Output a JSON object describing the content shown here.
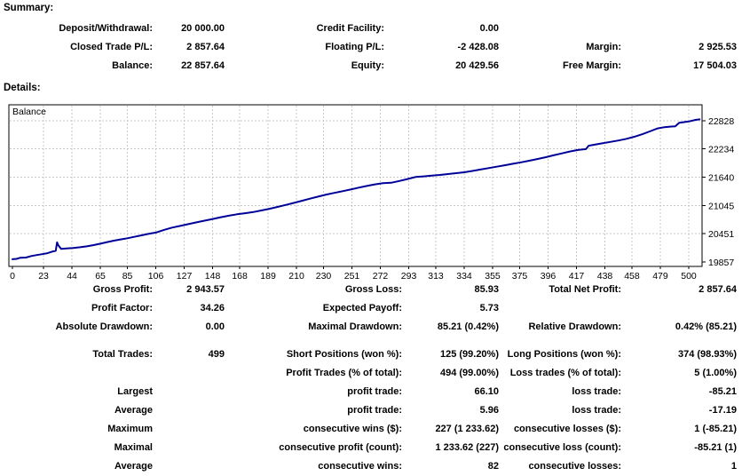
{
  "summary": {
    "heading": "Summary:",
    "rows": [
      [
        "Deposit/Withdrawal:",
        "20 000.00",
        "Credit Facility:",
        "0.00",
        "",
        ""
      ],
      [
        "Closed Trade P/L:",
        "2 857.64",
        "Floating P/L:",
        "-2 428.08",
        "Margin:",
        "2 925.53"
      ],
      [
        "Balance:",
        "22 857.64",
        "Equity:",
        "20 429.56",
        "Free Margin:",
        "17 504.03"
      ]
    ]
  },
  "details": {
    "heading": "Details:"
  },
  "chart_data": {
    "type": "line",
    "title": "Balance",
    "legend_position": "top-left-inside",
    "grid": "dashed",
    "line_color": "#000099",
    "grid_color": "#c8c8c8",
    "border_color": "#000000",
    "x_ticks": [
      0,
      23,
      44,
      65,
      85,
      106,
      127,
      148,
      168,
      189,
      210,
      230,
      251,
      272,
      293,
      313,
      334,
      355,
      375,
      396,
      417,
      438,
      458,
      479,
      500
    ],
    "y_ticks": [
      19857,
      20451,
      21045,
      21640,
      22234,
      22828
    ],
    "xlim": [
      0,
      510
    ],
    "ylim": [
      19764,
      23180
    ],
    "series": [
      {
        "name": "Balance",
        "points": [
          [
            0,
            19915
          ],
          [
            3,
            19922
          ],
          [
            6,
            19946
          ],
          [
            10,
            19950
          ],
          [
            14,
            19982
          ],
          [
            18,
            20002
          ],
          [
            22,
            20022
          ],
          [
            26,
            20042
          ],
          [
            30,
            20080
          ],
          [
            32,
            20092
          ],
          [
            33,
            20270
          ],
          [
            34,
            20205
          ],
          [
            36,
            20132
          ],
          [
            40,
            20142
          ],
          [
            45,
            20152
          ],
          [
            50,
            20168
          ],
          [
            55,
            20186
          ],
          [
            60,
            20212
          ],
          [
            65,
            20242
          ],
          [
            70,
            20276
          ],
          [
            75,
            20306
          ],
          [
            80,
            20332
          ],
          [
            85,
            20356
          ],
          [
            90,
            20386
          ],
          [
            95,
            20416
          ],
          [
            100,
            20446
          ],
          [
            106,
            20476
          ],
          [
            112,
            20532
          ],
          [
            118,
            20580
          ],
          [
            124,
            20616
          ],
          [
            130,
            20652
          ],
          [
            136,
            20690
          ],
          [
            142,
            20726
          ],
          [
            148,
            20762
          ],
          [
            154,
            20798
          ],
          [
            160,
            20830
          ],
          [
            166,
            20860
          ],
          [
            172,
            20882
          ],
          [
            178,
            20906
          ],
          [
            184,
            20940
          ],
          [
            190,
            20976
          ],
          [
            196,
            21016
          ],
          [
            202,
            21056
          ],
          [
            208,
            21100
          ],
          [
            214,
            21144
          ],
          [
            220,
            21188
          ],
          [
            226,
            21232
          ],
          [
            232,
            21274
          ],
          [
            238,
            21310
          ],
          [
            244,
            21346
          ],
          [
            250,
            21382
          ],
          [
            256,
            21420
          ],
          [
            262,
            21456
          ],
          [
            268,
            21490
          ],
          [
            274,
            21514
          ],
          [
            280,
            21524
          ],
          [
            286,
            21560
          ],
          [
            292,
            21602
          ],
          [
            298,
            21645
          ],
          [
            304,
            21658
          ],
          [
            310,
            21672
          ],
          [
            316,
            21688
          ],
          [
            322,
            21706
          ],
          [
            328,
            21724
          ],
          [
            334,
            21744
          ],
          [
            340,
            21772
          ],
          [
            346,
            21802
          ],
          [
            352,
            21832
          ],
          [
            358,
            21862
          ],
          [
            364,
            21892
          ],
          [
            370,
            21922
          ],
          [
            376,
            21952
          ],
          [
            382,
            21986
          ],
          [
            388,
            22022
          ],
          [
            394,
            22060
          ],
          [
            400,
            22100
          ],
          [
            406,
            22140
          ],
          [
            412,
            22180
          ],
          [
            418,
            22212
          ],
          [
            424,
            22232
          ],
          [
            426,
            22302
          ],
          [
            430,
            22322
          ],
          [
            436,
            22352
          ],
          [
            442,
            22382
          ],
          [
            448,
            22412
          ],
          [
            454,
            22448
          ],
          [
            460,
            22492
          ],
          [
            466,
            22548
          ],
          [
            472,
            22612
          ],
          [
            477,
            22666
          ],
          [
            482,
            22692
          ],
          [
            487,
            22706
          ],
          [
            490,
            22712
          ],
          [
            493,
            22786
          ],
          [
            496,
            22798
          ],
          [
            500,
            22812
          ],
          [
            505,
            22845
          ],
          [
            508,
            22857
          ]
        ]
      }
    ]
  },
  "stats": {
    "group1": {
      "rows": [
        [
          "Gross Profit:",
          "2 943.57",
          "Gross Loss:",
          "85.93",
          "Total Net Profit:",
          "2 857.64"
        ],
        [
          "Profit Factor:",
          "34.26",
          "Expected Payoff:",
          "5.73",
          "",
          ""
        ],
        [
          "Absolute Drawdown:",
          "0.00",
          "Maximal Drawdown:",
          "85.21 (0.42%)",
          "Relative Drawdown:",
          "0.42% (85.21)"
        ]
      ]
    },
    "group2": {
      "rows": [
        [
          "Total Trades:",
          "499",
          "Short Positions (won %):",
          "125 (99.20%)",
          "Long Positions (won %):",
          "374 (98.93%)"
        ],
        [
          "",
          "",
          "Profit Trades (% of total):",
          "494 (99.00%)",
          "Loss trades (% of total):",
          "5 (1.00%)"
        ],
        [
          "Largest",
          "",
          "profit trade:",
          "66.10",
          "loss trade:",
          "-85.21"
        ],
        [
          "Average",
          "",
          "profit trade:",
          "5.96",
          "loss trade:",
          "-17.19"
        ],
        [
          "Maximum",
          "",
          "consecutive wins ($):",
          "227 (1 233.62)",
          "consecutive losses ($):",
          "1 (-85.21)"
        ],
        [
          "Maximal",
          "",
          "consecutive profit (count):",
          "1 233.62 (227)",
          "consecutive loss (count):",
          "-85.21 (1)"
        ],
        [
          "Average",
          "",
          "consecutive wins:",
          "82",
          "consecutive losses:",
          "1"
        ]
      ]
    }
  }
}
